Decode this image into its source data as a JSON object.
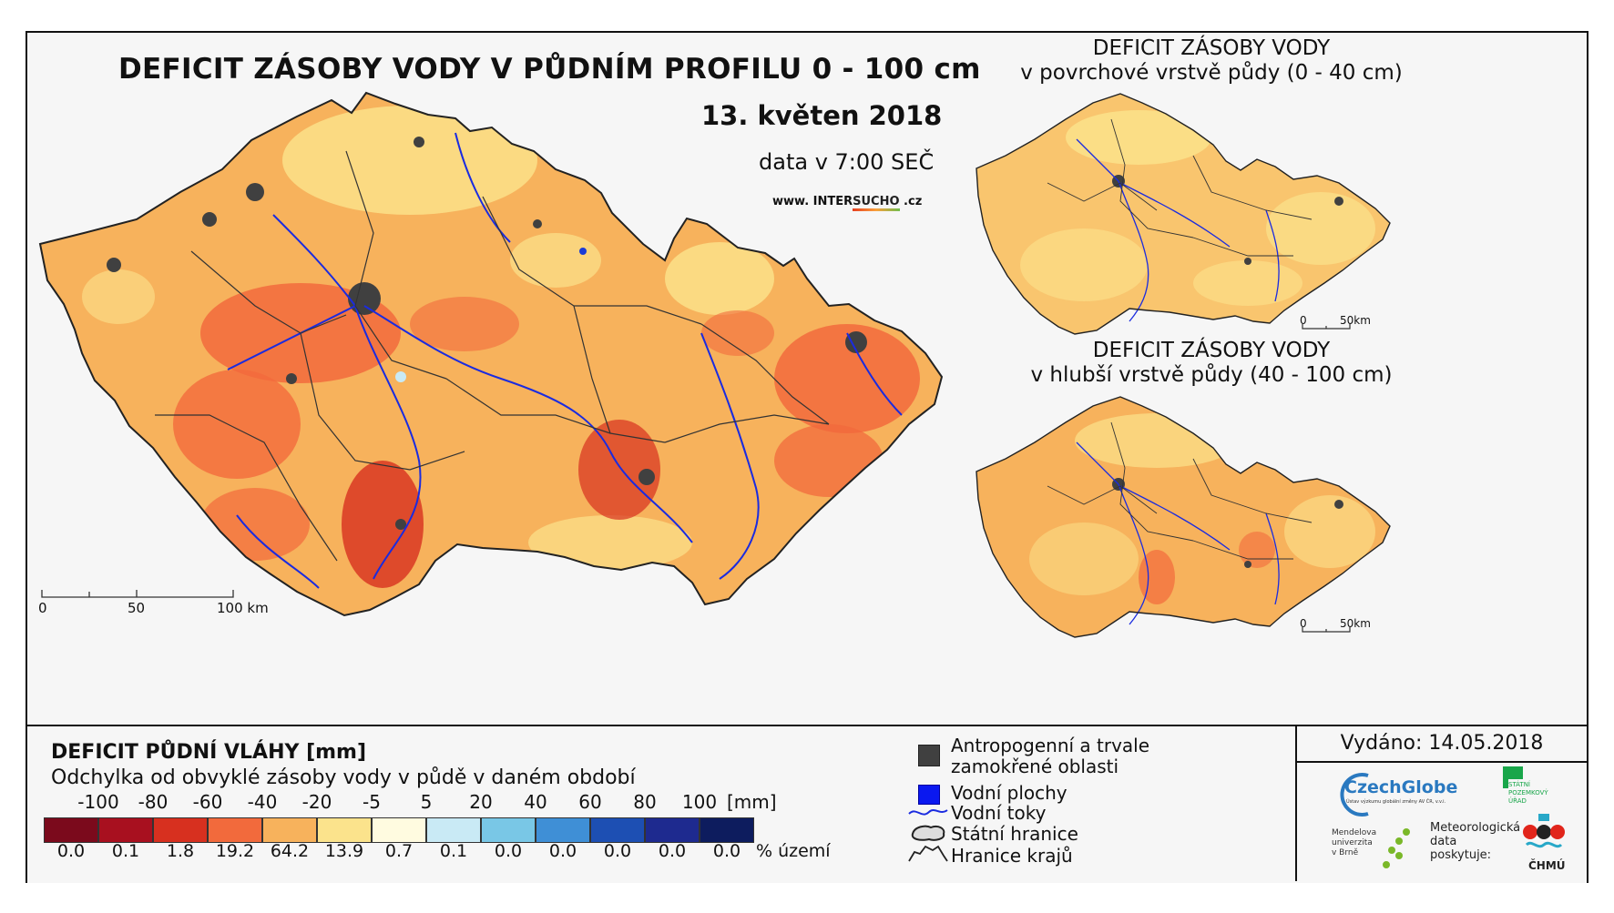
{
  "main": {
    "title": "DEFICIT ZÁSOBY VODY V PŮDNÍM PROFILU 0 - 100 cm",
    "date": "13. květen 2018",
    "time": "data v 7:00 SEČ",
    "url_prefix": "www. INTER",
    "url_highlight": "SUCHO",
    "url_suffix": " .cz",
    "scale_labels": [
      "0",
      "50",
      "100 km"
    ]
  },
  "inset_top": {
    "title_line1": "DEFICIT ZÁSOBY VODY",
    "title_line2": "v povrchové vrstvě půdy (0 - 40 cm)",
    "scale_labels": [
      "0",
      "50km"
    ]
  },
  "inset_bottom": {
    "title_line1": "DEFICIT ZÁSOBY VODY",
    "title_line2": "v hlubší vrstvě půdy (40 - 100 cm)",
    "scale_labels": [
      "0",
      "50km"
    ]
  },
  "legend": {
    "title": "DEFICIT PŮDNÍ VLÁHY [mm]",
    "subtitle": "Odchylka od obvyklé zásoby vody v půdě v daném období",
    "ticks": [
      "-100",
      "-80",
      "-60",
      "-40",
      "-20",
      "-5",
      "5",
      "20",
      "40",
      "60",
      "80",
      "100"
    ],
    "unit": "[mm]",
    "colors": [
      "#7b0a1c",
      "#a8101f",
      "#d7301f",
      "#f26a3c",
      "#f7b25c",
      "#fbe38c",
      "#fffbe0",
      "#c9eaf5",
      "#79c7e6",
      "#3f8fd6",
      "#1d4fb3",
      "#1e2a8f",
      "#0d1c5e"
    ],
    "percentages": [
      "0.0",
      "0.1",
      "1.8",
      "19.2",
      "64.2",
      "13.9",
      "0.7",
      "0.1",
      "0.0",
      "0.0",
      "0.0",
      "0.0",
      "0.0"
    ],
    "percent_label": "% území"
  },
  "symbols": {
    "anthropogenic": "Antropogenní a trvale zamokřené oblasti",
    "anthropogenic_line1": "Antropogenní a trvale",
    "anthropogenic_line2": "zamokřené oblasti",
    "water_bodies": "Vodní plochy",
    "rivers": "Vodní toky",
    "state_border": "Státní hranice",
    "region_border": "Hranice krajů"
  },
  "issued": "Vydáno: 14.05.2018",
  "logos": {
    "czechglobe": "CzechGlobe",
    "czechglobe_sub": "Ústav výzkumu globální změny AV ČR, v.v.i.",
    "spu_line1": "STÁTNÍ",
    "spu_line2": "POZEMKOVÝ",
    "spu_line3": "ÚŘAD",
    "mendel_line1": "Mendelova",
    "mendel_line2": "univerzita",
    "mendel_line3": "v Brně",
    "meteo_line1": "Meteorologická",
    "meteo_line2": "data",
    "meteo_line3": "poskytuje:",
    "chmu": "ČHMÚ"
  }
}
